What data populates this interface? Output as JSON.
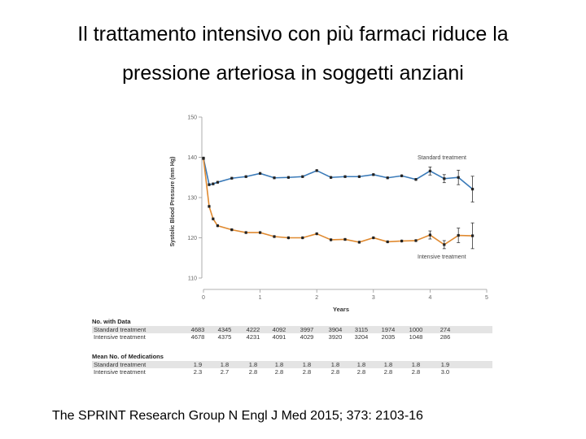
{
  "title_line1": "Il trattamento intensivo con più farmaci riduce la",
  "title_line2": "pressione arteriosa in soggetti anziani",
  "citation": "The SPRINT Research Group  N Engl J Med 2015; 373: 2103-16",
  "chart_data": {
    "type": "line",
    "ylabel": "Systolic Blood Pressure (mm Hg)",
    "xlabel": "Years",
    "ylim": [
      110,
      150
    ],
    "xlim": [
      0,
      5
    ],
    "yticks": [
      "110",
      "120",
      "130",
      "140",
      "150"
    ],
    "xticks": [
      "0",
      "1",
      "2",
      "3",
      "4",
      "5"
    ],
    "series": [
      {
        "name": "Standard treatment",
        "color": "#3a7ab8",
        "x": [
          0,
          0.1,
          0.17,
          0.25,
          0.5,
          0.75,
          1,
          1.25,
          1.5,
          1.75,
          2,
          2.25,
          2.5,
          2.75,
          3,
          3.25,
          3.5,
          3.75,
          4,
          4.25,
          4.5,
          4.75
        ],
        "values": [
          139.8,
          133.2,
          133.4,
          133.8,
          134.8,
          135.2,
          136.0,
          134.9,
          135.0,
          135.2,
          136.7,
          135.0,
          135.2,
          135.2,
          135.7,
          134.9,
          135.4,
          134.5,
          136.6,
          134.7,
          135.0,
          132.1
        ]
      },
      {
        "name": "Intensive treatment",
        "color": "#e08a30",
        "x": [
          0,
          0.1,
          0.17,
          0.25,
          0.5,
          0.75,
          1,
          1.25,
          1.5,
          1.75,
          2,
          2.25,
          2.5,
          2.75,
          3,
          3.25,
          3.5,
          3.75,
          4,
          4.25,
          4.5,
          4.75
        ],
        "values": [
          139.7,
          127.8,
          124.7,
          123.0,
          122.0,
          121.3,
          121.3,
          120.3,
          120.0,
          120.0,
          121.0,
          119.5,
          119.6,
          118.9,
          120.0,
          119.0,
          119.2,
          119.3,
          120.7,
          118.3,
          120.6,
          120.5
        ]
      }
    ]
  },
  "table": {
    "no_with_data_header": "No. with Data",
    "mean_meds_header": "Mean No. of Medications",
    "rows_data": [
      {
        "label": "Standard treatment",
        "values": [
          "4683",
          "4345",
          "4222",
          "4092",
          "3997",
          "3904",
          "3115",
          "1974",
          "1000",
          "274"
        ]
      },
      {
        "label": "Intensive treatment",
        "values": [
          "4678",
          "4375",
          "4231",
          "4091",
          "4029",
          "3920",
          "3204",
          "2035",
          "1048",
          "286"
        ]
      }
    ],
    "rows_meds": [
      {
        "label": "Standard treatment",
        "values": [
          "1.9",
          "1.8",
          "1.8",
          "1.8",
          "1.8",
          "1.8",
          "1.8",
          "1.8",
          "1.8",
          "1.9"
        ]
      },
      {
        "label": "Intensive treatment",
        "values": [
          "2.3",
          "2.7",
          "2.8",
          "2.8",
          "2.8",
          "2.8",
          "2.8",
          "2.8",
          "2.8",
          "3.0"
        ]
      }
    ]
  }
}
